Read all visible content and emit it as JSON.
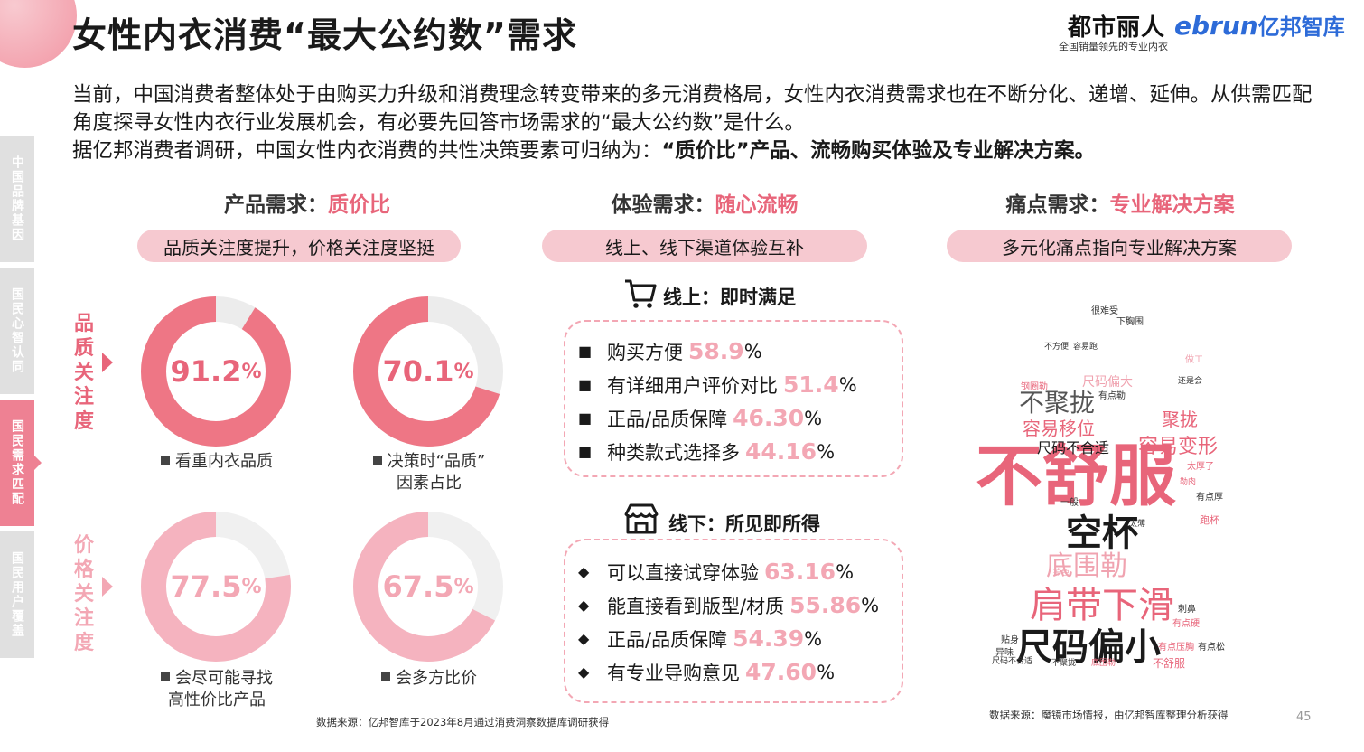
{
  "header": {
    "title": "女性内衣消费“最大公约数”需求",
    "brand_primary": "都市丽人",
    "brand_primary_tagline": "全国销量领先的专业内衣",
    "brand_secondary_en": "ebrun",
    "brand_secondary_cn": "亿邦智库"
  },
  "intro": {
    "line1": "当前，中国消费者整体处于由购买力升级和消费理念转变带来的多元消费格局，女性内衣消费需求也在不断分化、递增、延伸。从供需匹配角度探寻女性内衣行业发展机会，有必要先回答市场需求的“最大公约数”是什么。",
    "line2_prefix": "据亿邦消费者调研，中国女性内衣消费的共性决策要素可归纳为：",
    "line2_emph": "“质价比”产品、流畅购买体验及专业解决方案。"
  },
  "side_tabs": [
    {
      "label": "中国品牌基因",
      "active": false
    },
    {
      "label": "国民心智认同",
      "active": false
    },
    {
      "label": "国民需求匹配",
      "active": true
    },
    {
      "label": "国民用户覆盖",
      "active": false
    }
  ],
  "columns": {
    "product": {
      "head": "产品需求：",
      "head_hl": "质价比",
      "pill": "品质关注度提升，价格关注度坚挺"
    },
    "experience": {
      "head": "体验需求：",
      "head_hl": "随心流畅",
      "pill": "线上、线下渠道体验互补"
    },
    "pain": {
      "head": "痛点需求：",
      "head_hl": "专业解决方案",
      "pill": "多元化痛点指向专业解决方案"
    }
  },
  "quality_label": "品质关注度",
  "price_label": "价格关注度",
  "donuts": [
    {
      "value": "91.2",
      "unit": "%",
      "percent": 91.2,
      "legend1": "看重内衣品质",
      "legend2": "",
      "color": "#ee7685",
      "track": "#ececec",
      "light": false
    },
    {
      "value": "70.1",
      "unit": "%",
      "percent": 70.1,
      "legend1": "决策时“品质”",
      "legend2": "因素占比",
      "color": "#ee7685",
      "track": "#ececec",
      "light": false
    },
    {
      "value": "77.5",
      "unit": "%",
      "percent": 77.5,
      "legend1": "会尽可能寻找",
      "legend2": "高性价比产品",
      "color": "#f5b3bf",
      "track": "#f0f0f0",
      "light": true
    },
    {
      "value": "67.5",
      "unit": "%",
      "percent": 67.5,
      "legend1": "会多方比价",
      "legend2": "",
      "color": "#f5b3bf",
      "track": "#f0f0f0",
      "light": true
    }
  ],
  "online": {
    "icon": "cart-icon",
    "title": "线上：即时满足",
    "marker": "■",
    "items": [
      {
        "label": "购买方便 ",
        "value": "58.9",
        "unit": "%"
      },
      {
        "label": "有详细用户评价对比 ",
        "value": "51.4",
        "unit": "%"
      },
      {
        "label": "正品/品质保障 ",
        "value": "46.30",
        "unit": "%"
      },
      {
        "label": "种类款式选择多 ",
        "value": "44.16",
        "unit": "%"
      }
    ]
  },
  "offline": {
    "icon": "store-icon",
    "title": "线下：所见即所得",
    "marker": "◆",
    "items": [
      {
        "label": "可以直接试穿体验 ",
        "value": "63.16",
        "unit": "%"
      },
      {
        "label": "能直接看到版型/材质 ",
        "value": "55.86",
        "unit": "%"
      },
      {
        "label": "正品/品质保障 ",
        "value": "54.39",
        "unit": "%"
      },
      {
        "label": "有专业导购意见 ",
        "value": "47.60",
        "unit": "%"
      }
    ]
  },
  "word_cloud": [
    {
      "text": "不舒服",
      "color": "#e8657a"
    },
    {
      "text": "肩带下滑",
      "color": "#e8657a"
    },
    {
      "text": "尺码偏小",
      "color": "#1a1a1a"
    },
    {
      "text": "空杯",
      "color": "#1a1a1a"
    },
    {
      "text": "底围勒",
      "color": "#f0a3b0"
    },
    {
      "text": "不聚拢",
      "color": "#555555"
    },
    {
      "text": "容易移位",
      "color": "#e8657a"
    },
    {
      "text": "容易变形",
      "color": "#e8657a"
    },
    {
      "text": "尺码不合适",
      "color": "#1a1a1a"
    },
    {
      "text": "聚拢",
      "color": "#e8657a"
    },
    {
      "text": "尺码偏大",
      "color": "#f0a3b0"
    },
    {
      "text": "很难受",
      "color": "#333333"
    },
    {
      "text": "不方便",
      "color": "#333333"
    },
    {
      "text": "容易跑",
      "color": "#333333"
    },
    {
      "text": "有点勒",
      "color": "#333333"
    },
    {
      "text": "还是会",
      "color": "#333333"
    },
    {
      "text": "太厚了",
      "color": "#e8657a"
    },
    {
      "text": "有点厚",
      "color": "#333333"
    },
    {
      "text": "太薄",
      "color": "#333333"
    },
    {
      "text": "勒肉",
      "color": "#e8657a"
    },
    {
      "text": "刺鼻",
      "color": "#333333"
    },
    {
      "text": "有点硬",
      "color": "#e8657a"
    },
    {
      "text": "有点压胸",
      "color": "#e8657a"
    },
    {
      "text": "有点松",
      "color": "#333333"
    },
    {
      "text": "不舒服",
      "color": "#e8657a"
    },
    {
      "text": "尺码不合适",
      "color": "#333333"
    },
    {
      "text": "不聚拢",
      "color": "#333333"
    },
    {
      "text": "底围勒",
      "color": "#e8657a"
    },
    {
      "text": "一般",
      "color": "#333333"
    },
    {
      "text": "掉色",
      "color": "#f0a3b0"
    },
    {
      "text": "钢圈勒",
      "color": "#e8657a"
    },
    {
      "text": "下胸围",
      "color": "#333333"
    },
    {
      "text": "做工",
      "color": "#f0a3b0"
    },
    {
      "text": "跑杯",
      "color": "#e8657a"
    },
    {
      "text": "异味",
      "color": "#333333"
    },
    {
      "text": "贴身",
      "color": "#333333"
    }
  ],
  "sources": {
    "left": "数据来源：亿邦智库于2023年8月通过消费洞察数据库调研获得",
    "right": "数据来源：魔镜市场情报，由亿邦智库整理分析获得"
  },
  "page_number": "45"
}
